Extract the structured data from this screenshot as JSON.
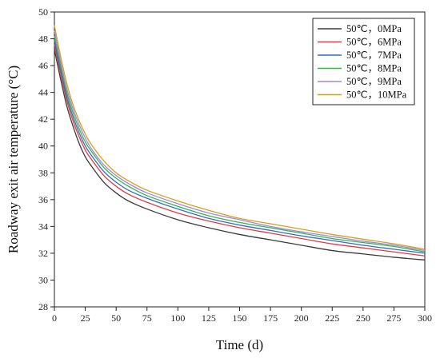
{
  "chart_data": {
    "type": "line",
    "xlabel": "Time (d)",
    "ylabel": "Roadway exit air temperature (°C)",
    "xlim": [
      0,
      300
    ],
    "ylim": [
      28,
      50
    ],
    "x_ticks": [
      "0",
      "25",
      "50",
      "75",
      "100",
      "125",
      "150",
      "175",
      "200",
      "225",
      "250",
      "275",
      "300"
    ],
    "y_ticks": [
      "28",
      "30",
      "32",
      "34",
      "36",
      "38",
      "40",
      "42",
      "44",
      "46",
      "48",
      "50"
    ],
    "grid": false,
    "legend_position": "top-right",
    "x": [
      0,
      5,
      10,
      15,
      20,
      25,
      30,
      40,
      50,
      60,
      75,
      100,
      125,
      150,
      175,
      200,
      225,
      250,
      275,
      300
    ],
    "series": [
      {
        "name": "50℃，0MPa",
        "color": "#3a3a3a",
        "values": [
          47.2,
          45.0,
          43.0,
          41.5,
          40.2,
          39.2,
          38.5,
          37.3,
          36.5,
          35.9,
          35.3,
          34.5,
          33.9,
          33.4,
          33.0,
          32.6,
          32.2,
          31.95,
          31.7,
          31.5
        ]
      },
      {
        "name": "50℃，6MPa",
        "color": "#e8383d",
        "values": [
          47.6,
          45.4,
          43.4,
          41.9,
          40.7,
          39.7,
          39.0,
          37.8,
          37.0,
          36.4,
          35.8,
          35.0,
          34.4,
          33.9,
          33.5,
          33.1,
          32.7,
          32.4,
          32.1,
          31.8
        ]
      },
      {
        "name": "50℃，7MPa",
        "color": "#2f6fbd",
        "values": [
          47.9,
          45.7,
          43.7,
          42.2,
          41.0,
          40.0,
          39.3,
          38.1,
          37.3,
          36.7,
          36.1,
          35.3,
          34.6,
          34.1,
          33.7,
          33.3,
          32.95,
          32.6,
          32.3,
          32.0
        ]
      },
      {
        "name": "50℃，8MPa",
        "color": "#35b34a",
        "values": [
          48.2,
          46.0,
          44.0,
          42.5,
          41.3,
          40.3,
          39.6,
          38.4,
          37.6,
          37.0,
          36.3,
          35.5,
          34.8,
          34.3,
          33.9,
          33.5,
          33.1,
          32.8,
          32.5,
          32.1
        ]
      },
      {
        "name": "50℃，9MPa",
        "color": "#a584e0",
        "values": [
          48.6,
          46.3,
          44.3,
          42.8,
          41.6,
          40.6,
          39.8,
          38.6,
          37.8,
          37.2,
          36.5,
          35.7,
          35.0,
          34.5,
          34.0,
          33.6,
          33.25,
          32.9,
          32.6,
          32.2
        ]
      },
      {
        "name": "50℃，10MPa",
        "color": "#d4a017",
        "values": [
          49.0,
          46.7,
          44.7,
          43.1,
          41.9,
          40.9,
          40.1,
          38.9,
          38.0,
          37.4,
          36.7,
          35.9,
          35.2,
          34.6,
          34.2,
          33.8,
          33.4,
          33.05,
          32.7,
          32.3
        ]
      }
    ]
  }
}
